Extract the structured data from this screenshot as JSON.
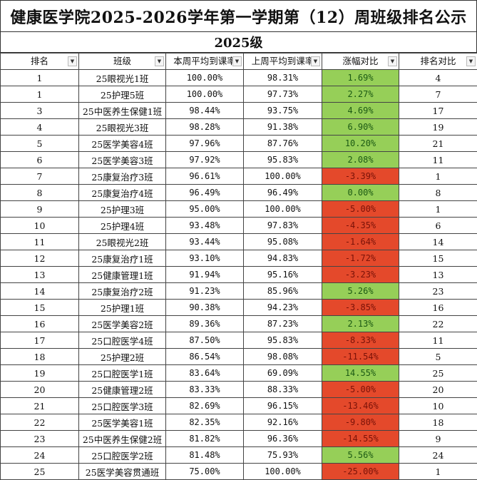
{
  "title": "健康医学院2025-2026学年第一学期第（12）周班级排名公示",
  "subtitle": "2025级",
  "headers": [
    "排名",
    "班级",
    "本周平均到课率",
    "上周平均到课率",
    "涨幅对比",
    "排名对比"
  ],
  "filter_icon": "dropdown-arrow-icon",
  "colors": {
    "increase": "#96cf58",
    "decrease": "#e4492b"
  },
  "rows": [
    {
      "rank": "1",
      "cls": "25眼视光1班",
      "this": "100.00%",
      "last": "98.31%",
      "change": "1.69%",
      "trend": "up",
      "prev": "4"
    },
    {
      "rank": "1",
      "cls": "25护理5班",
      "this": "100.00%",
      "last": "97.73%",
      "change": "2.27%",
      "trend": "up",
      "prev": "7"
    },
    {
      "rank": "3",
      "cls": "25中医养生保健1班",
      "this": "98.44%",
      "last": "93.75%",
      "change": "4.69%",
      "trend": "up",
      "prev": "17"
    },
    {
      "rank": "4",
      "cls": "25眼视光3班",
      "this": "98.28%",
      "last": "91.38%",
      "change": "6.90%",
      "trend": "up",
      "prev": "19"
    },
    {
      "rank": "5",
      "cls": "25医学美容4班",
      "this": "97.96%",
      "last": "87.76%",
      "change": "10.20%",
      "trend": "up",
      "prev": "21"
    },
    {
      "rank": "6",
      "cls": "25医学美容3班",
      "this": "97.92%",
      "last": "95.83%",
      "change": "2.08%",
      "trend": "up",
      "prev": "11"
    },
    {
      "rank": "7",
      "cls": "25康复治疗3班",
      "this": "96.61%",
      "last": "100.00%",
      "change": "-3.39%",
      "trend": "down",
      "prev": "1"
    },
    {
      "rank": "8",
      "cls": "25康复治疗4班",
      "this": "96.49%",
      "last": "96.49%",
      "change": "0.00%",
      "trend": "zero",
      "prev": "8"
    },
    {
      "rank": "9",
      "cls": "25护理3班",
      "this": "95.00%",
      "last": "100.00%",
      "change": "-5.00%",
      "trend": "down",
      "prev": "1"
    },
    {
      "rank": "10",
      "cls": "25护理4班",
      "this": "93.48%",
      "last": "97.83%",
      "change": "-4.35%",
      "trend": "down",
      "prev": "6"
    },
    {
      "rank": "11",
      "cls": "25眼视光2班",
      "this": "93.44%",
      "last": "95.08%",
      "change": "-1.64%",
      "trend": "down",
      "prev": "14"
    },
    {
      "rank": "12",
      "cls": "25康复治疗1班",
      "this": "93.10%",
      "last": "94.83%",
      "change": "-1.72%",
      "trend": "down",
      "prev": "15"
    },
    {
      "rank": "13",
      "cls": "25健康管理1班",
      "this": "91.94%",
      "last": "95.16%",
      "change": "-3.23%",
      "trend": "down",
      "prev": "13"
    },
    {
      "rank": "14",
      "cls": "25康复治疗2班",
      "this": "91.23%",
      "last": "85.96%",
      "change": "5.26%",
      "trend": "up",
      "prev": "23"
    },
    {
      "rank": "15",
      "cls": "25护理1班",
      "this": "90.38%",
      "last": "94.23%",
      "change": "-3.85%",
      "trend": "down",
      "prev": "16"
    },
    {
      "rank": "16",
      "cls": "25医学美容2班",
      "this": "89.36%",
      "last": "87.23%",
      "change": "2.13%",
      "trend": "up",
      "prev": "22"
    },
    {
      "rank": "17",
      "cls": "25口腔医学4班",
      "this": "87.50%",
      "last": "95.83%",
      "change": "-8.33%",
      "trend": "down",
      "prev": "11"
    },
    {
      "rank": "18",
      "cls": "25护理2班",
      "this": "86.54%",
      "last": "98.08%",
      "change": "-11.54%",
      "trend": "down",
      "prev": "5"
    },
    {
      "rank": "19",
      "cls": "25口腔医学1班",
      "this": "83.64%",
      "last": "69.09%",
      "change": "14.55%",
      "trend": "up",
      "prev": "25"
    },
    {
      "rank": "20",
      "cls": "25健康管理2班",
      "this": "83.33%",
      "last": "88.33%",
      "change": "-5.00%",
      "trend": "down",
      "prev": "20"
    },
    {
      "rank": "21",
      "cls": "25口腔医学3班",
      "this": "82.69%",
      "last": "96.15%",
      "change": "-13.46%",
      "trend": "down",
      "prev": "10"
    },
    {
      "rank": "22",
      "cls": "25医学美容1班",
      "this": "82.35%",
      "last": "92.16%",
      "change": "-9.80%",
      "trend": "down",
      "prev": "18"
    },
    {
      "rank": "23",
      "cls": "25中医养生保健2班",
      "this": "81.82%",
      "last": "96.36%",
      "change": "-14.55%",
      "trend": "down",
      "prev": "9"
    },
    {
      "rank": "24",
      "cls": "25口腔医学2班",
      "this": "81.48%",
      "last": "75.93%",
      "change": "5.56%",
      "trend": "up",
      "prev": "24"
    },
    {
      "rank": "25",
      "cls": "25医学美容贯通班",
      "this": "75.00%",
      "last": "100.00%",
      "change": "-25.00%",
      "trend": "down",
      "prev": "1"
    }
  ]
}
